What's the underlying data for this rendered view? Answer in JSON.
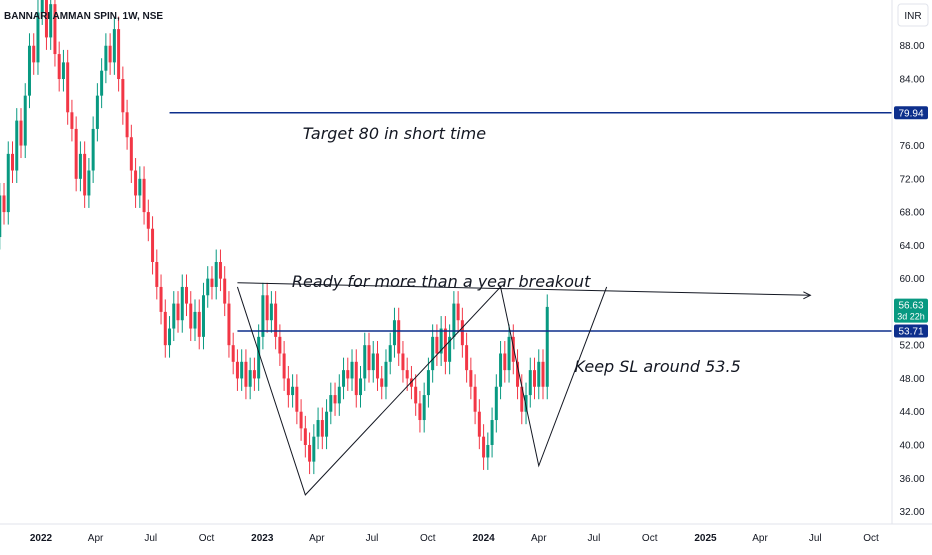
{
  "chart_data": {
    "type": "candlestick",
    "title": "BANNARI AMMAN SPIN, 1W, NSE",
    "currency": "INR",
    "y_ticks": [
      "88.00",
      "84.00",
      "80.00",
      "76.00",
      "72.00",
      "68.00",
      "64.00",
      "60.00",
      "56.00",
      "52.00",
      "48.00",
      "44.00",
      "40.00",
      "36.00",
      "32.00"
    ],
    "ylim": [
      30.5,
      93.5
    ],
    "x_ticks": [
      {
        "label": "2022",
        "date": "2022-01-01",
        "bold": true
      },
      {
        "label": "Apr",
        "date": "2022-04-01"
      },
      {
        "label": "Jul",
        "date": "2022-07-01"
      },
      {
        "label": "Oct",
        "date": "2022-10-01"
      },
      {
        "label": "2023",
        "date": "2023-01-01",
        "bold": true
      },
      {
        "label": "Apr",
        "date": "2023-04-01"
      },
      {
        "label": "Jul",
        "date": "2023-07-01"
      },
      {
        "label": "Oct",
        "date": "2023-10-01"
      },
      {
        "label": "2024",
        "date": "2024-01-01",
        "bold": true
      },
      {
        "label": "Apr",
        "date": "2024-04-01"
      },
      {
        "label": "Jul",
        "date": "2024-07-01"
      },
      {
        "label": "Oct",
        "date": "2024-10-01"
      },
      {
        "label": "2025",
        "date": "2025-01-01",
        "bold": true
      },
      {
        "label": "Apr",
        "date": "2025-04-01"
      },
      {
        "label": "Jul",
        "date": "2025-07-01"
      },
      {
        "label": "Oct",
        "date": "2025-10-01"
      }
    ],
    "candles": {
      "first_week": "2021-10-04",
      "open_close": [
        [
          62.0,
          66.0
        ],
        [
          66.0,
          69.0
        ],
        [
          69.0,
          65.0
        ],
        [
          65.0,
          70.0
        ],
        [
          70.0,
          68.0
        ],
        [
          68.0,
          75.0
        ],
        [
          75.0,
          73.0
        ],
        [
          73.0,
          79.0
        ],
        [
          79.0,
          76.0
        ],
        [
          76.0,
          82.0
        ],
        [
          82.0,
          88.0
        ],
        [
          88.0,
          86.0
        ],
        [
          86.0,
          92.0
        ],
        [
          92.0,
          95.0
        ],
        [
          95.0,
          89.0
        ],
        [
          89.0,
          93.0
        ],
        [
          93.0,
          87.0
        ],
        [
          87.0,
          84.0
        ],
        [
          84.0,
          86.0
        ],
        [
          86.0,
          80.0
        ],
        [
          80.0,
          78.0
        ],
        [
          78.0,
          72.0
        ],
        [
          72.0,
          75.0
        ],
        [
          75.0,
          70.0
        ],
        [
          70.0,
          73.0
        ],
        [
          73.0,
          78.0
        ],
        [
          78.0,
          82.0
        ],
        [
          82.0,
          85.0
        ],
        [
          85.0,
          88.0
        ],
        [
          88.0,
          86.0
        ],
        [
          86.0,
          90.0
        ],
        [
          90.0,
          84.0
        ],
        [
          84.0,
          80.0
        ],
        [
          80.0,
          77.0
        ],
        [
          77.0,
          73.0
        ],
        [
          73.0,
          70.0
        ],
        [
          70.0,
          72.0
        ],
        [
          72.0,
          68.0
        ],
        [
          68.0,
          66.0
        ],
        [
          66.0,
          62.0
        ],
        [
          62.0,
          59.0
        ],
        [
          59.0,
          56.0
        ],
        [
          56.0,
          52.0
        ],
        [
          52.0,
          54.0
        ],
        [
          54.0,
          57.0
        ],
        [
          57.0,
          55.0
        ],
        [
          55.0,
          59.0
        ],
        [
          59.0,
          57.0
        ],
        [
          57.0,
          54.0
        ],
        [
          54.0,
          56.0
        ],
        [
          56.0,
          53.0
        ],
        [
          53.0,
          58.0
        ],
        [
          58.0,
          60.0
        ],
        [
          60.0,
          59.0
        ],
        [
          59.0,
          62.0
        ],
        [
          62.0,
          60.0
        ],
        [
          60.0,
          57.0
        ],
        [
          57.0,
          52.0
        ],
        [
          52.0,
          50.0
        ],
        [
          50.0,
          48.0
        ],
        [
          48.0,
          50.0
        ],
        [
          50.0,
          47.0
        ],
        [
          47.0,
          49.0
        ],
        [
          49.0,
          48.0
        ],
        [
          48.0,
          53.0
        ],
        [
          53.0,
          58.0
        ],
        [
          58.0,
          55.0
        ],
        [
          55.0,
          57.0
        ],
        [
          57.0,
          53.0
        ],
        [
          53.0,
          51.0
        ],
        [
          51.0,
          48.0
        ],
        [
          48.0,
          46.0
        ],
        [
          46.0,
          47.0
        ],
        [
          47.0,
          44.0
        ],
        [
          44.0,
          42.0
        ],
        [
          42.0,
          40.0
        ],
        [
          40.0,
          38.0
        ],
        [
          38.0,
          41.0
        ],
        [
          41.0,
          43.0
        ],
        [
          43.0,
          41.0
        ],
        [
          41.0,
          44.0
        ],
        [
          44.0,
          46.0
        ],
        [
          46.0,
          45.0
        ],
        [
          45.0,
          47.0
        ],
        [
          47.0,
          49.0
        ],
        [
          49.0,
          48.0
        ],
        [
          48.0,
          50.0
        ],
        [
          50.0,
          46.0
        ],
        [
          46.0,
          48.0
        ],
        [
          48.0,
          52.0
        ],
        [
          52.0,
          49.0
        ],
        [
          49.0,
          51.0
        ],
        [
          51.0,
          48.0
        ],
        [
          48.0,
          47.0
        ],
        [
          47.0,
          50.0
        ],
        [
          50.0,
          52.0
        ],
        [
          52.0,
          55.0
        ],
        [
          55.0,
          51.0
        ],
        [
          51.0,
          49.0
        ],
        [
          49.0,
          48.0
        ],
        [
          48.0,
          47.0
        ],
        [
          47.0,
          45.0
        ],
        [
          45.0,
          43.0
        ],
        [
          43.0,
          46.0
        ],
        [
          46.0,
          49.0
        ],
        [
          49.0,
          53.0
        ],
        [
          53.0,
          51.0
        ],
        [
          51.0,
          54.0
        ],
        [
          54.0,
          50.0
        ],
        [
          50.0,
          53.0
        ],
        [
          53.0,
          57.0
        ],
        [
          57.0,
          55.0
        ],
        [
          55.0,
          52.0
        ],
        [
          52.0,
          49.0
        ],
        [
          49.0,
          47.0
        ],
        [
          47.0,
          44.0
        ],
        [
          44.0,
          41.0
        ],
        [
          41.0,
          38.5
        ],
        [
          38.5,
          40.0
        ],
        [
          40.0,
          43.0
        ],
        [
          43.0,
          47.0
        ],
        [
          47.0,
          51.0
        ],
        [
          51.0,
          49.0
        ],
        [
          49.0,
          53.0
        ],
        [
          53.0,
          50.0
        ],
        [
          50.0,
          47.0
        ],
        [
          47.0,
          44.0
        ],
        [
          44.0,
          46.0
        ],
        [
          46.0,
          49.0
        ],
        [
          49.0,
          47.0
        ],
        [
          47.0,
          50.0
        ],
        [
          50.0,
          47.0
        ],
        [
          47.0,
          56.6
        ]
      ],
      "note": "weekly candles; wicks extend about 1.5 above and below the body"
    },
    "price_labels": [
      {
        "value": 56.63,
        "text": "56.63",
        "sub": "3d 22h",
        "color": "#089981"
      },
      {
        "value": 53.71,
        "text": "53.71",
        "color": "#0d2f8c"
      },
      {
        "value": 79.94,
        "text": "79.94",
        "color": "#0d2f8c"
      }
    ],
    "horizontal_lines": [
      {
        "value": 79.94,
        "from": "2022-08-01",
        "color": "#0d2f8c"
      },
      {
        "value": 53.71,
        "from": "2022-11-21",
        "color": "#0d2f8c"
      }
    ],
    "trend_lines": [
      {
        "points": [
          [
            "2022-11-21",
            59.0
          ],
          [
            "2023-03-13",
            34.0
          ],
          [
            "2024-01-29",
            59.0
          ],
          [
            "2024-04-01",
            37.5
          ],
          [
            "2024-07-22",
            59.0
          ]
        ],
        "color": "#131722"
      },
      {
        "points": [
          [
            "2022-11-21",
            59.5
          ],
          [
            "2025-06-23",
            58.0
          ]
        ],
        "color": "#131722",
        "arrow": true
      }
    ],
    "annotations": [
      {
        "text": "Target 80 in short time",
        "date": "2023-08-07",
        "value": 76.8
      },
      {
        "text": "Ready for more than a year breakout",
        "date": "2023-10-23",
        "value": 59.0
      },
      {
        "text": "Keep SL around 53.5",
        "date": "2024-10-14",
        "value": 48.8
      }
    ],
    "colors": {
      "up": "#089981",
      "down": "#f23645",
      "line": "#0d2f8c"
    }
  }
}
